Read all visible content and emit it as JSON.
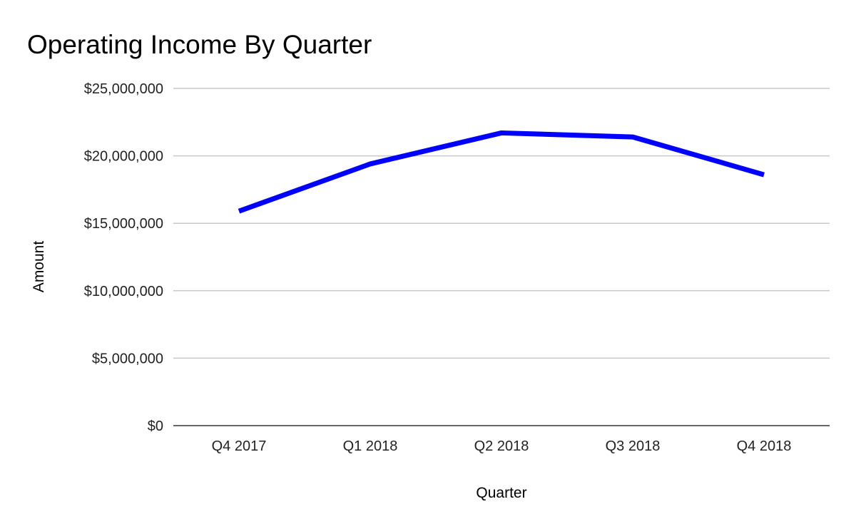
{
  "chart_data": {
    "type": "line",
    "title": "Operating Income By Quarter",
    "xlabel": "Quarter",
    "ylabel": "Amount",
    "categories": [
      "Q4 2017",
      "Q1 2018",
      "Q2 2018",
      "Q3 2018",
      "Q4 2018"
    ],
    "series": [
      {
        "values": [
          15900000,
          19400000,
          21700000,
          21400000,
          18600000
        ],
        "color": "#0000ff"
      }
    ],
    "ylim": [
      0,
      25000000
    ],
    "yticks": [
      0,
      5000000,
      10000000,
      15000000,
      20000000,
      25000000
    ],
    "ytick_labels": [
      "$0",
      "$5,000,000",
      "$10,000,000",
      "$15,000,000",
      "$20,000,000",
      "$25,000,000"
    ],
    "grid": true,
    "legend": "none"
  }
}
